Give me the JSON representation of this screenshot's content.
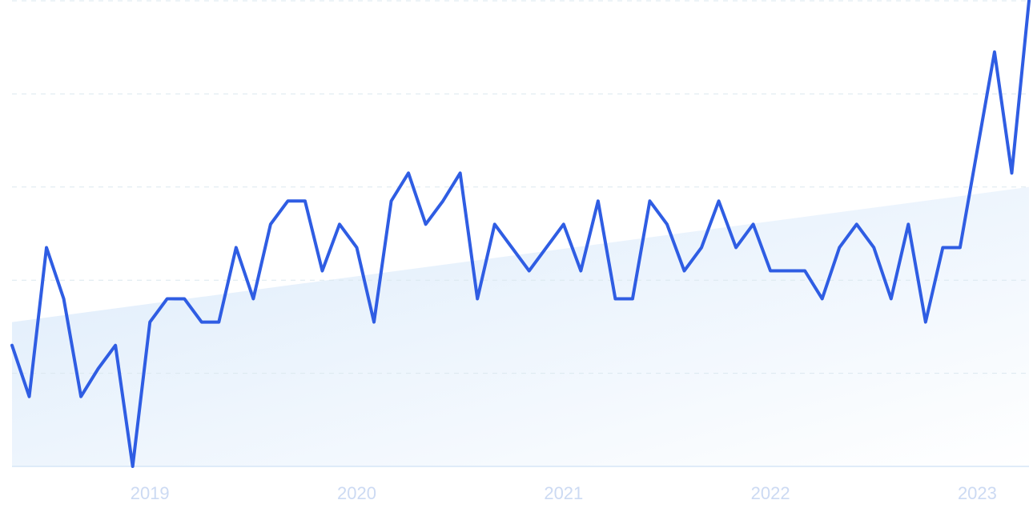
{
  "chart_data": {
    "type": "line",
    "categories": [
      null,
      null,
      null,
      null,
      null,
      null,
      null,
      null,
      "2019",
      null,
      null,
      null,
      null,
      null,
      null,
      null,
      null,
      null,
      null,
      null,
      "2020",
      null,
      null,
      null,
      null,
      null,
      null,
      null,
      null,
      null,
      null,
      null,
      "2021",
      null,
      null,
      null,
      null,
      null,
      null,
      null,
      null,
      null,
      null,
      null,
      "2022",
      null,
      null,
      null,
      null,
      null,
      null,
      null,
      null,
      null,
      null,
      null,
      "2023",
      null,
      null,
      null
    ],
    "series": [
      {
        "color": "#2f5de3",
        "values": [
          26,
          15,
          47,
          36,
          15,
          21,
          26,
          0,
          31,
          36,
          36,
          31,
          31,
          47,
          36,
          52,
          57,
          57,
          42,
          52,
          47,
          31,
          57,
          63,
          52,
          57,
          63,
          36,
          52,
          47,
          42,
          47,
          52,
          42,
          57,
          36,
          36,
          57,
          52,
          42,
          47,
          57,
          47,
          52,
          42,
          42,
          42,
          36,
          47,
          52,
          47,
          36,
          52,
          31,
          47,
          47,
          68,
          89,
          63,
          100
        ]
      }
    ],
    "trend": {
      "start": 31,
      "end": 60,
      "color": "#dcebfb"
    },
    "ylim": [
      0,
      100
    ],
    "yticks": [
      0,
      20,
      40,
      60,
      80,
      100
    ],
    "grid": true
  }
}
